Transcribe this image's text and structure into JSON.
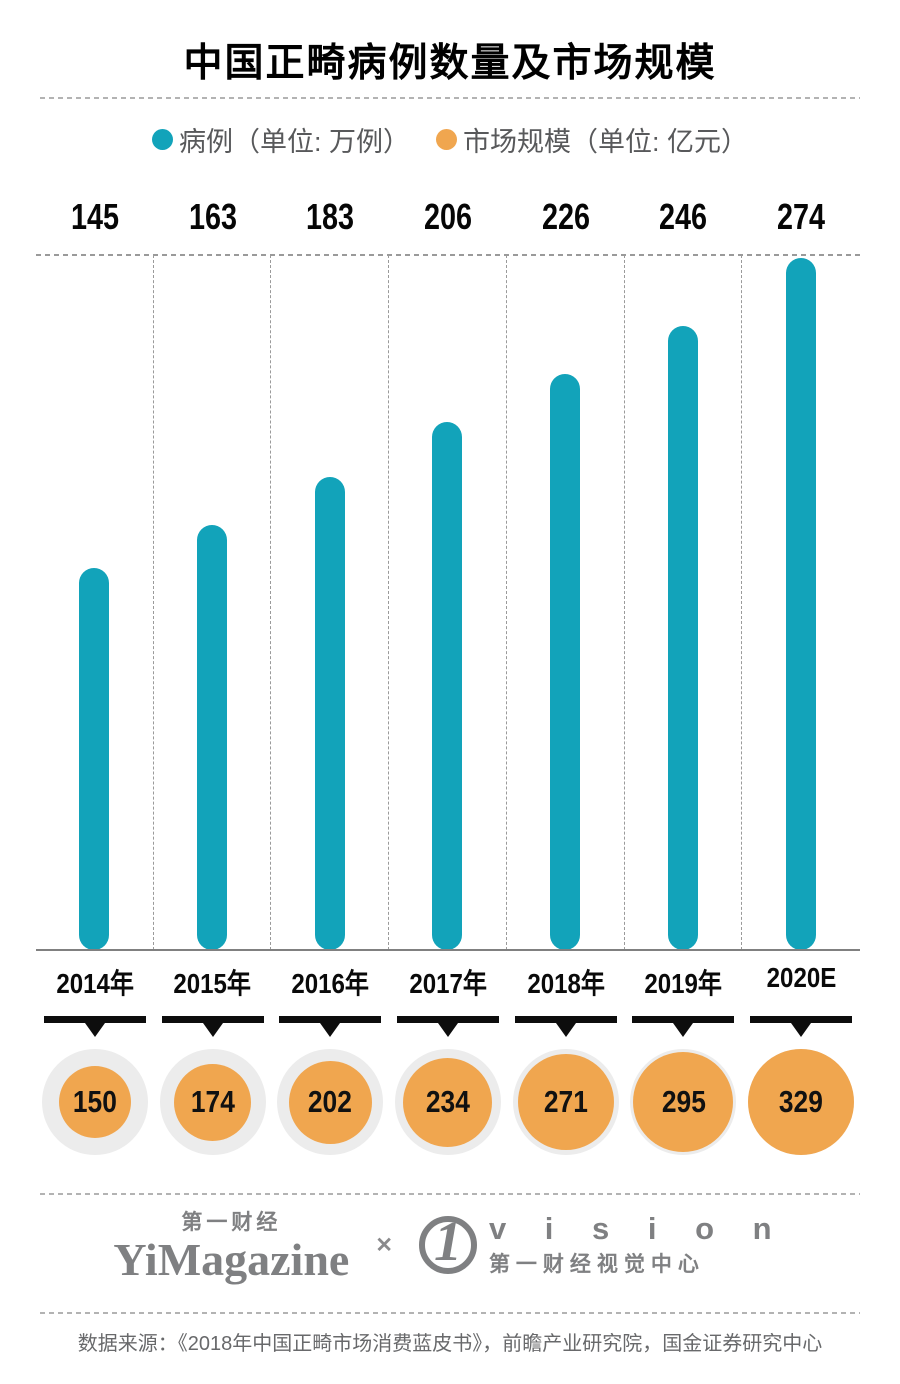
{
  "title": "中国正畸病例数量及市场规模",
  "legend": {
    "items": [
      {
        "label": "病例（单位: 万例）",
        "color": "#12a3ba"
      },
      {
        "label": "市场规模（单位: 亿元）",
        "color": "#f0a64f"
      }
    ]
  },
  "chart_data": {
    "type": "bar",
    "title": "中国正畸病例数量及市场规模",
    "categories": [
      "2014年",
      "2015年",
      "2016年",
      "2017年",
      "2018年",
      "2019年",
      "2020E"
    ],
    "series": [
      {
        "name": "病例（单位: 万例）",
        "color": "#12a3ba",
        "style": "rounded-capsule-bar",
        "values": [
          145,
          163,
          183,
          206,
          226,
          246,
          274
        ]
      },
      {
        "name": "市场规模（单位: 亿元）",
        "color": "#f0a64f",
        "style": "bubble",
        "values": [
          150,
          174,
          202,
          234,
          271,
          295,
          329
        ]
      }
    ],
    "ylim": [
      0,
      274
    ],
    "grid": "top dashed gridline and dashed vertical column separators",
    "legend_position": "top-center"
  },
  "colors": {
    "bar_teal": "#12a3ba",
    "bubble_orange": "#f0a64f",
    "bubble_ring_gray": "#ececec",
    "marker_black": "#0d0d0d",
    "line_gray": "#9a9a9a",
    "footer_gray": "#7f8082"
  },
  "footer": {
    "brand_cn": "第一财经",
    "brand_en": "YiMagazine",
    "cross": "✕",
    "vision_mark": "1",
    "vision_en": "v i s i o n",
    "vision_cn": "第一财经视觉中心",
    "source": "数据来源：《2018年中国正畸市场消费蓝皮书》，前瞻产业研究院，国金证券研究中心"
  }
}
